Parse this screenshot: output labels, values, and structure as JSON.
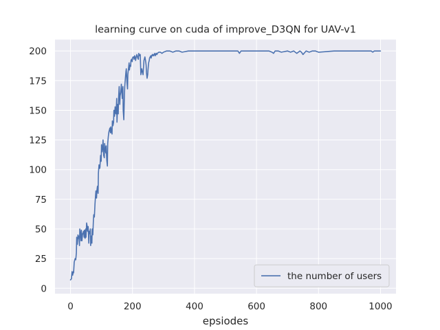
{
  "chart_data": {
    "type": "line",
    "title": "learning curve on cuda of improve_D3QN for UAV-v1",
    "xlabel": "epsiodes",
    "ylabel": "",
    "xlim": [
      -50,
      1050
    ],
    "ylim": [
      -4.6,
      209.6
    ],
    "xticks": [
      0,
      200,
      400,
      600,
      800,
      1000
    ],
    "yticks": [
      0,
      25,
      50,
      75,
      100,
      125,
      150,
      175,
      200
    ],
    "grid": true,
    "legend": {
      "position": "lower-right",
      "entries": [
        "the number of users"
      ]
    },
    "colors": {
      "background": "#eaeaf2",
      "grid": "#ffffff",
      "series": "#4c72b0",
      "text": "#262626"
    },
    "series": [
      {
        "name": "the number of users",
        "x": [
          0,
          3,
          5,
          7,
          9,
          10,
          12,
          14,
          15,
          17,
          19,
          20,
          22,
          24,
          25,
          27,
          29,
          30,
          32,
          34,
          35,
          37,
          39,
          40,
          42,
          44,
          45,
          47,
          49,
          50,
          52,
          54,
          55,
          57,
          59,
          60,
          62,
          64,
          65,
          67,
          69,
          70,
          72,
          74,
          75,
          77,
          79,
          80,
          82,
          84,
          85,
          87,
          89,
          90,
          92,
          94,
          95,
          97,
          99,
          100,
          102,
          104,
          105,
          107,
          109,
          110,
          112,
          114,
          115,
          117,
          119,
          120,
          122,
          124,
          125,
          127,
          129,
          130,
          132,
          134,
          135,
          137,
          139,
          140,
          142,
          144,
          145,
          147,
          149,
          150,
          152,
          154,
          155,
          157,
          159,
          160,
          162,
          164,
          165,
          167,
          169,
          170,
          172,
          174,
          175,
          177,
          179,
          180,
          182,
          184,
          185,
          187,
          189,
          190,
          192,
          194,
          195,
          197,
          199,
          200,
          202,
          204,
          205,
          207,
          209,
          210,
          212,
          214,
          215,
          217,
          219,
          220,
          222,
          224,
          225,
          227,
          229,
          230,
          232,
          234,
          235,
          237,
          239,
          240,
          242,
          244,
          245,
          247,
          249,
          250,
          252,
          254,
          255,
          257,
          259,
          260,
          262,
          264,
          265,
          267,
          269,
          270,
          272,
          274,
          275,
          277,
          279,
          280,
          285,
          290,
          295,
          300,
          310,
          320,
          330,
          340,
          350,
          360,
          380,
          400,
          450,
          500,
          520,
          540,
          545,
          550,
          600,
          640,
          650,
          655,
          660,
          670,
          680,
          700,
          710,
          720,
          730,
          740,
          745,
          750,
          760,
          770,
          780,
          790,
          800,
          850,
          900,
          950,
          970,
          975,
          980,
          1000
        ],
        "y": [
          7,
          8,
          14,
          11,
          14,
          13,
          22,
          24,
          25,
          24,
          30,
          43,
          37,
          45,
          42,
          44,
          36,
          50,
          46,
          40,
          49,
          40,
          46,
          46,
          48,
          43,
          49,
          42,
          50,
          43,
          55,
          52,
          48,
          52,
          38,
          48,
          46,
          50,
          36,
          44,
          38,
          50,
          45,
          58,
          62,
          60,
          71,
          75,
          82,
          76,
          82,
          86,
          80,
          97,
          104,
          101,
          102,
          112,
          107,
          121,
          115,
          120,
          125,
          112,
          110,
          122,
          117,
          114,
          120,
          108,
          103,
          122,
          128,
          132,
          133,
          135,
          131,
          136,
          132,
          130,
          141,
          137,
          140,
          150,
          145,
          153,
          148,
          147,
          160,
          140,
          155,
          147,
          160,
          170,
          155,
          162,
          165,
          172,
          168,
          160,
          170,
          150,
          142,
          163,
          170,
          177,
          183,
          185,
          174,
          168,
          180,
          185,
          190,
          184,
          188,
          187,
          192,
          193,
          191,
          194,
          195,
          195,
          193,
          196,
          194,
          192,
          195,
          197,
          196,
          194,
          193,
          198,
          196,
          197,
          197,
          180,
          184,
          185,
          182,
          180,
          184,
          192,
          194,
          195,
          192,
          188,
          182,
          177,
          180,
          184,
          190,
          192,
          194,
          195,
          196,
          194,
          196,
          197,
          196,
          197,
          196,
          197,
          198,
          196,
          197,
          198,
          197,
          198,
          199,
          199,
          198,
          199,
          200,
          200,
          199,
          200,
          200,
          199,
          200,
          200,
          200,
          200,
          200,
          200,
          198,
          200,
          200,
          200,
          199,
          198,
          200,
          200,
          199,
          200,
          199,
          200,
          198,
          200,
          199,
          197,
          200,
          199,
          200,
          200,
          199,
          200,
          200,
          200,
          200,
          199,
          200,
          200
        ]
      }
    ]
  }
}
